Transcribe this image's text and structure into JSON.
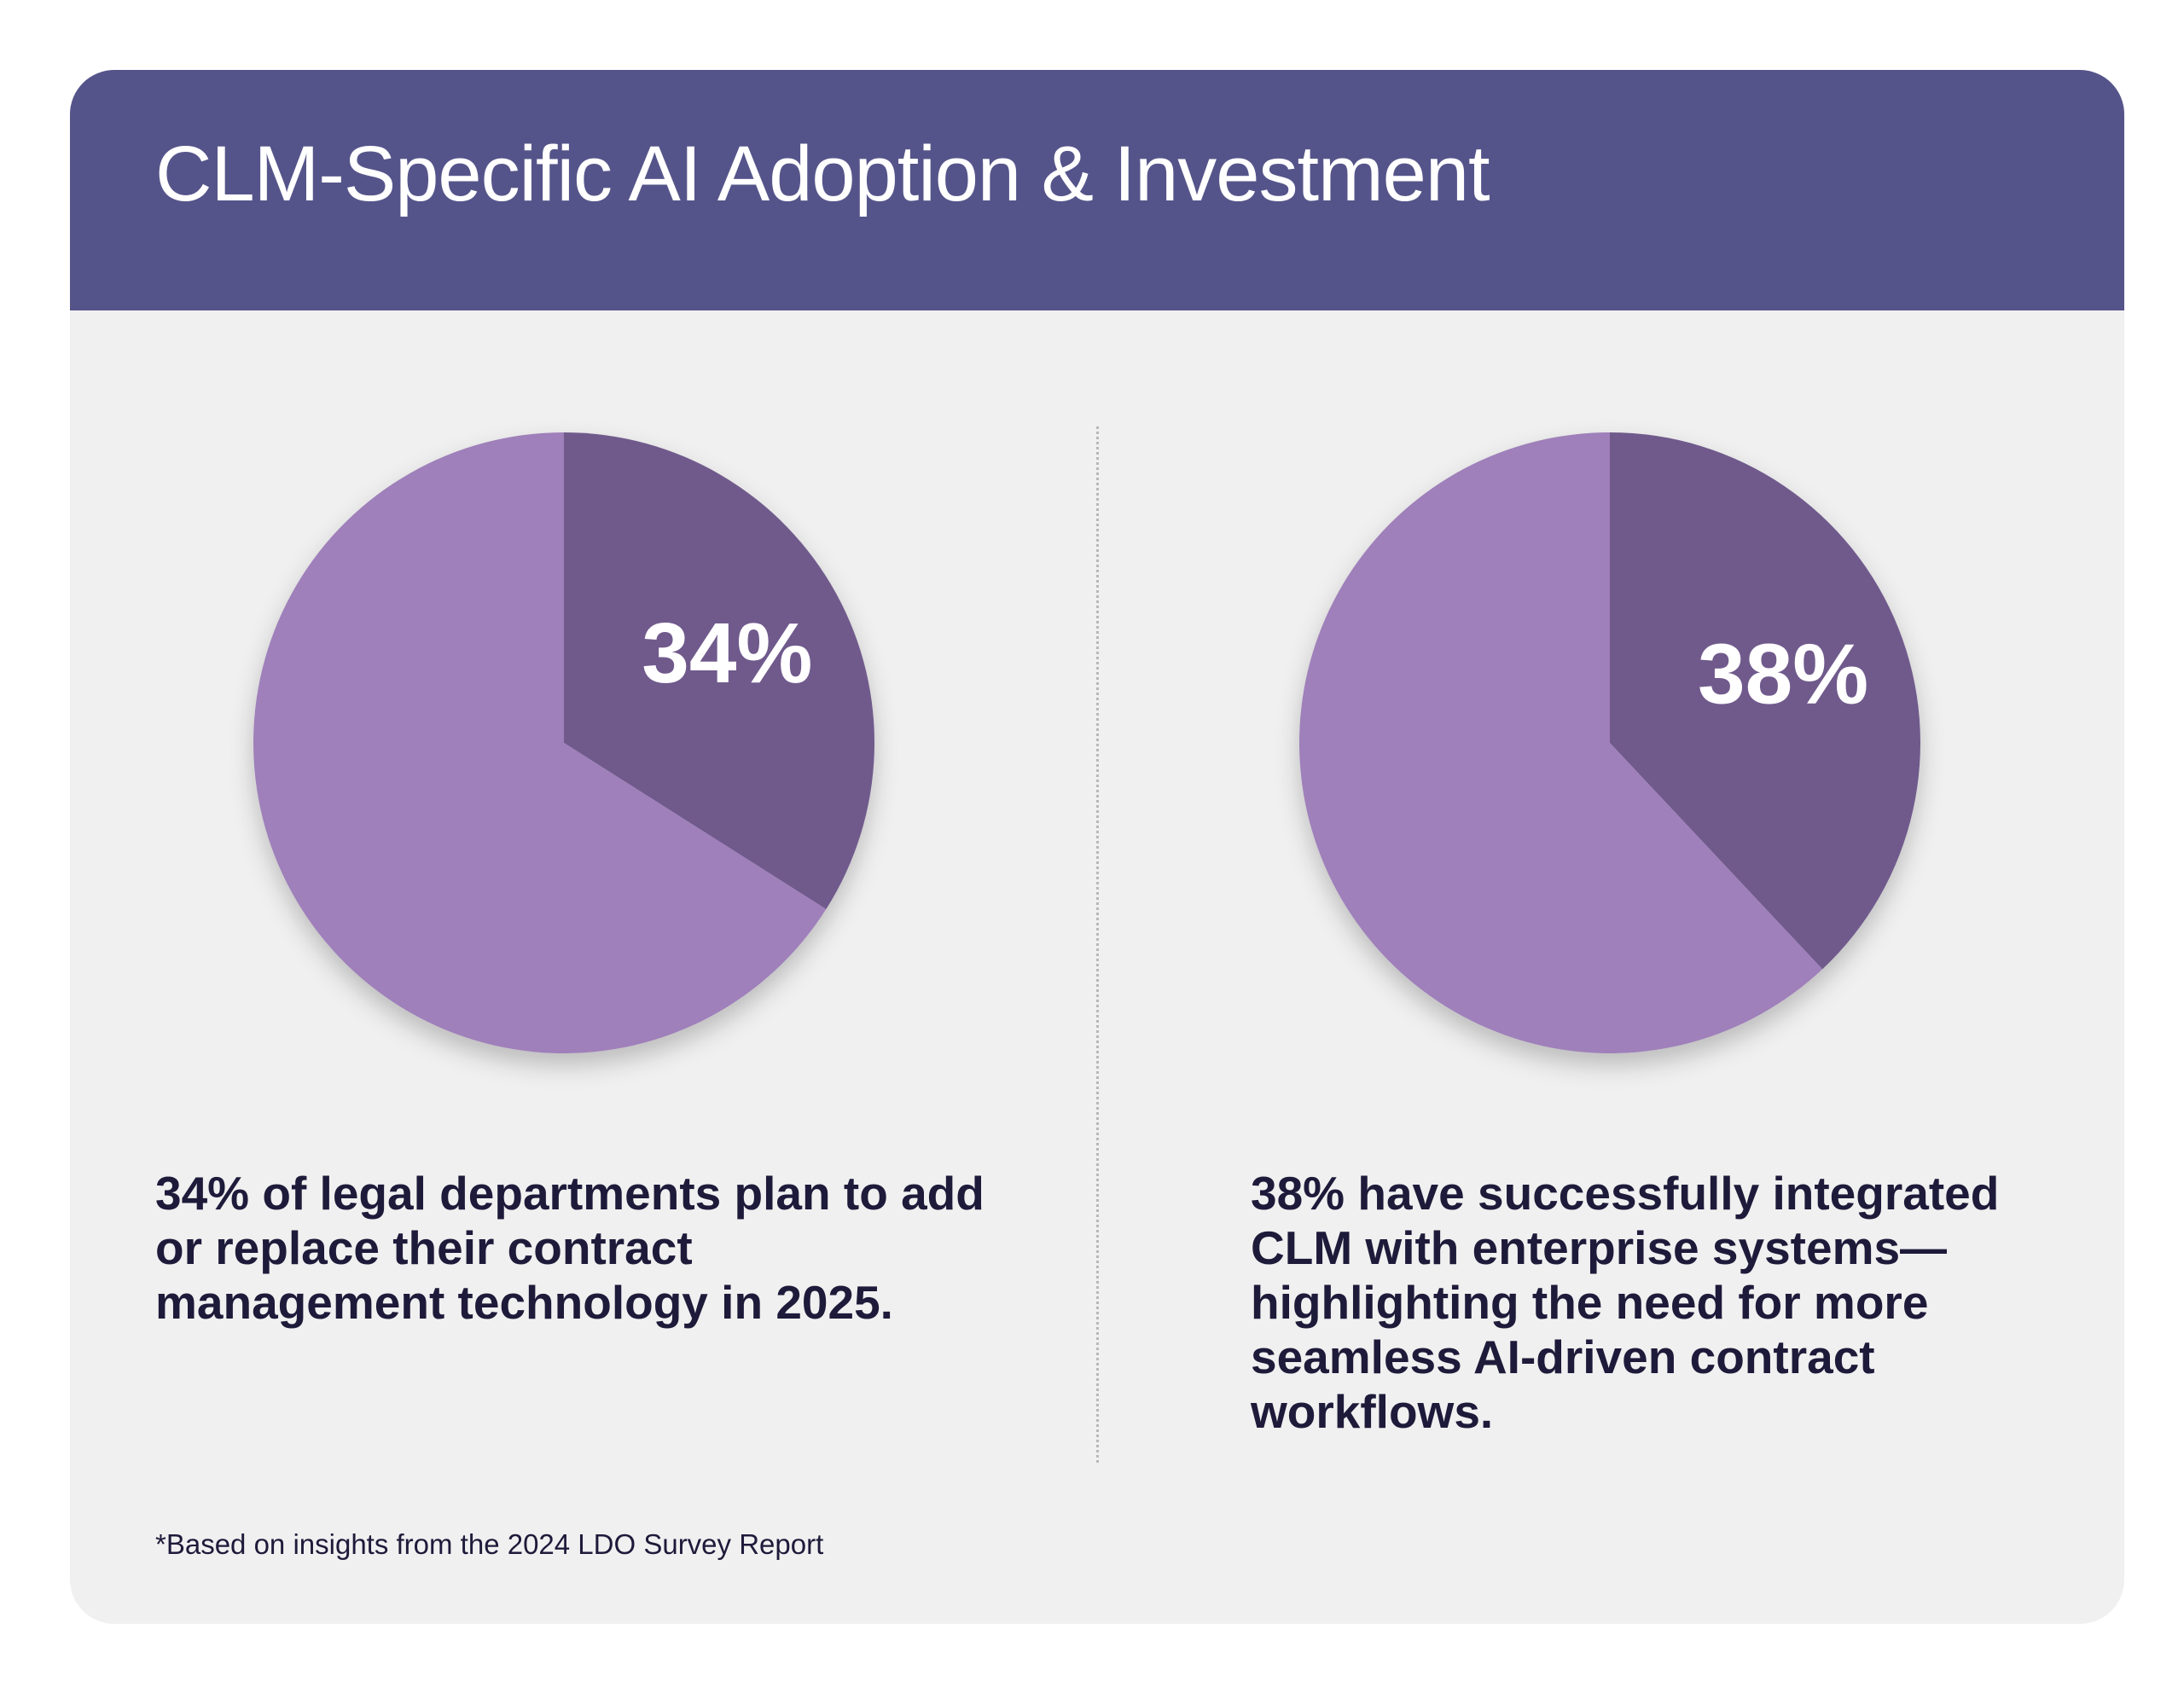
{
  "title": "CLM-Specific AI Adoption & Investment",
  "colors": {
    "header": "#55548a",
    "highlight_slice": "#6f5a8c",
    "rest_slice": "#9f80ba",
    "background": "#f0f0f0",
    "text": "#1e1a3a"
  },
  "chart_data": [
    {
      "type": "pie",
      "values": [
        34,
        66
      ],
      "labels": [
        "34%",
        ""
      ],
      "start": "12 o'clock, clockwise"
    },
    {
      "type": "pie",
      "values": [
        38,
        62
      ],
      "labels": [
        "38%",
        ""
      ],
      "start": "12 o'clock, clockwise"
    }
  ],
  "descriptions": [
    "34% of legal departments plan to add or replace their contract management technology in 2025.",
    "38% have successfully integrated CLM with enterprise systems—highlighting the need for more seamless AI-driven contract workflows."
  ],
  "footnote": "*Based on insights from the 2024 LDO Survey Report"
}
